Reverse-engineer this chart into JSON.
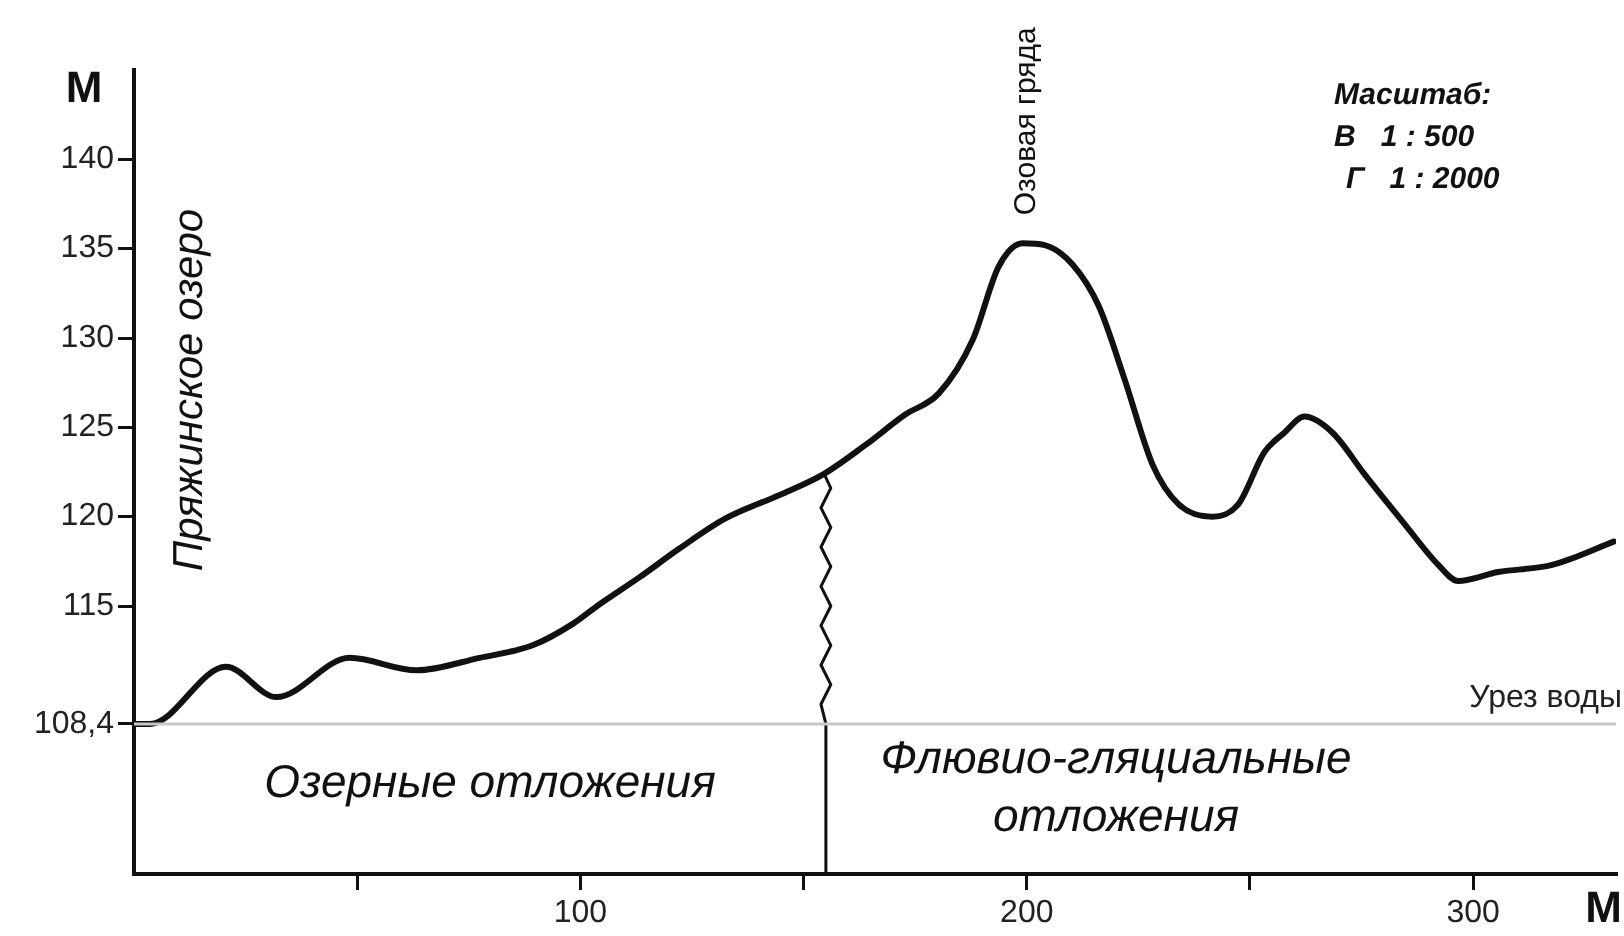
{
  "chart_data": {
    "type": "line",
    "xlabel": "М",
    "ylabel": "М",
    "x": [
      0,
      3.6,
      20.6,
      31.9,
      48.3,
      63.3,
      77.4,
      89.3,
      98.3,
      104.3,
      113.2,
      122.1,
      132.5,
      144.5,
      154.6,
      163.8,
      172.7,
      180.3,
      187.9,
      193.7,
      199.1,
      204,
      210.3,
      216.1,
      221.9,
      228.2,
      234,
      241.6,
      247.4,
      253.2,
      257.7,
      262.2,
      268.5,
      275.6,
      284.6,
      292.2,
      296.6,
      305.6,
      317.7,
      331.5
    ],
    "series": [
      {
        "color": "#111111",
        "values": [
          108.4,
          108.4,
          111.6,
          109.9,
          112.1,
          111.4,
          112.1,
          112.8,
          114.0,
          115.1,
          116.6,
          118.2,
          119.9,
          121.2,
          122.4,
          124.0,
          125.7,
          126.9,
          129.9,
          134.0,
          135.3,
          135.2,
          134.1,
          131.8,
          127.7,
          122.9,
          120.7,
          120.0,
          120.7,
          123.6,
          124.7,
          125.6,
          124.7,
          122.4,
          119.6,
          117.3,
          116.4,
          116.9,
          117.3,
          118.6
        ]
      },
      {
        "type": "line",
        "color": "#111111",
        "x": [
          155,
          155,
          153.9,
          156.1,
          153.9,
          156.1,
          153.9,
          156.1,
          153.9,
          156.1,
          153.9,
          156.1,
          153.9,
          156.1,
          154.6
        ],
        "values": [
          100,
          108.4,
          109.5,
          110.6,
          111.7,
          112.8,
          113.9,
          115.0,
          116.1,
          117.2,
          118.3,
          119.4,
          120.5,
          121.6,
          122.4
        ]
      }
    ],
    "xlim": [
      0,
      332
    ],
    "ylim": [
      100,
      145
    ],
    "xticks": [
      {
        "value": 50,
        "label": null
      },
      100,
      {
        "value": 150,
        "label": null
      },
      200,
      {
        "value": 250,
        "label": null
      },
      300
    ],
    "yticks": [
      {
        "value": 108.4,
        "label": "108,4"
      },
      115,
      120,
      125,
      130,
      135,
      140
    ],
    "grid": false,
    "legend": false,
    "ref_lines": [
      {
        "axis": "y",
        "value": 108.4,
        "label": "Урез воды",
        "color": "#c8c8c8"
      }
    ],
    "annotations": [
      "Пряжинское озеро",
      "Озерные отложения",
      "Флювио-гляциальные\nотложения",
      {
        "text": "Озовая гряда",
        "x": 200,
        "y": 135.3
      },
      "Масштаб:\nВ   1 : 500\nГ   1 : 2000"
    ]
  }
}
